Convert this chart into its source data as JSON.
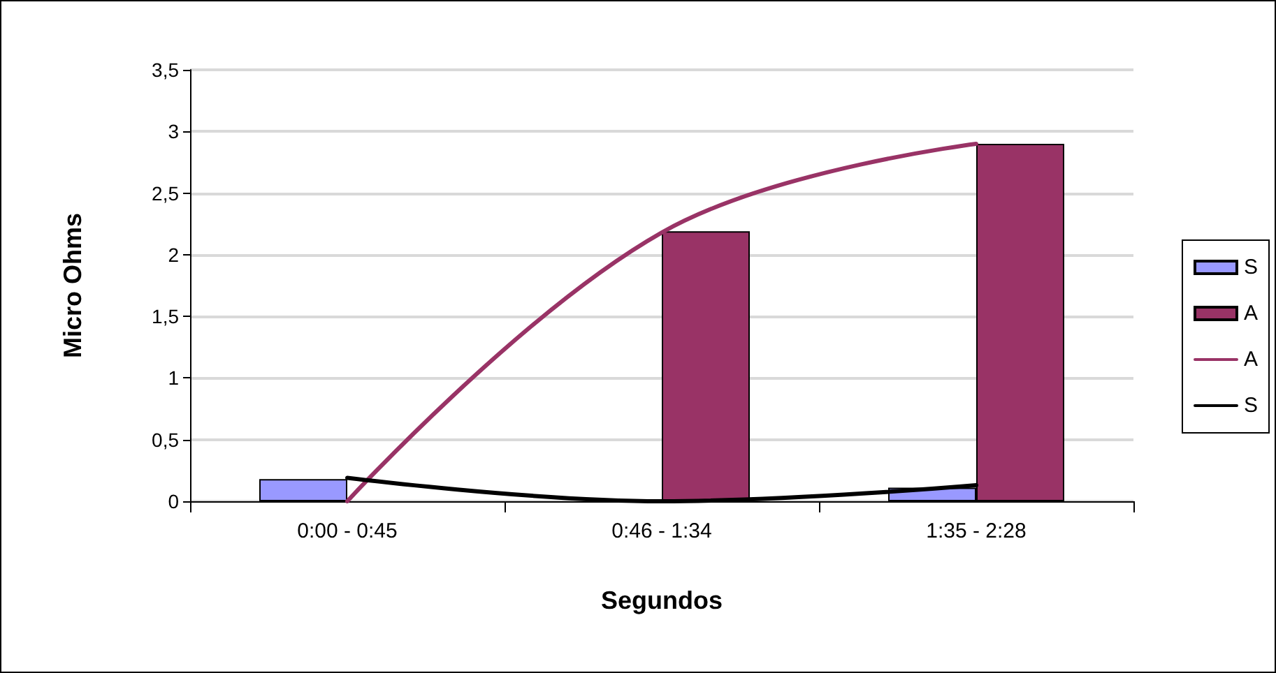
{
  "chart_data": {
    "type": "bar",
    "xlabel": "Segundos",
    "ylabel": "Micro Ohms",
    "categories": [
      "0:00 - 0:45",
      "0:46 - 1:34",
      "1:35 - 2:28"
    ],
    "series": [
      {
        "name": "S",
        "color": "#9999ff",
        "values": [
          0.18,
          null,
          0.11
        ]
      },
      {
        "name": "A",
        "color": "#993366",
        "values": [
          null,
          2.19,
          2.9
        ]
      },
      {
        "name": "A",
        "type": "line",
        "color": "#993366",
        "values": [
          0,
          2.18,
          2.9
        ]
      },
      {
        "name": "S",
        "type": "line",
        "color": "#000000",
        "values": [
          0.19,
          0,
          0.13
        ]
      }
    ],
    "ylim": [
      0,
      3.5
    ],
    "yticks": [
      0,
      {
        "value": 0.5,
        "label": "0,5"
      },
      1,
      {
        "value": 1.5,
        "label": "1,5"
      },
      2,
      {
        "value": 2.5,
        "label": "2,5"
      },
      3,
      {
        "value": 3.5,
        "label": "3,5"
      }
    ],
    "grid": "y",
    "legend": "right",
    "line_style": "solid",
    "marker": "none"
  }
}
